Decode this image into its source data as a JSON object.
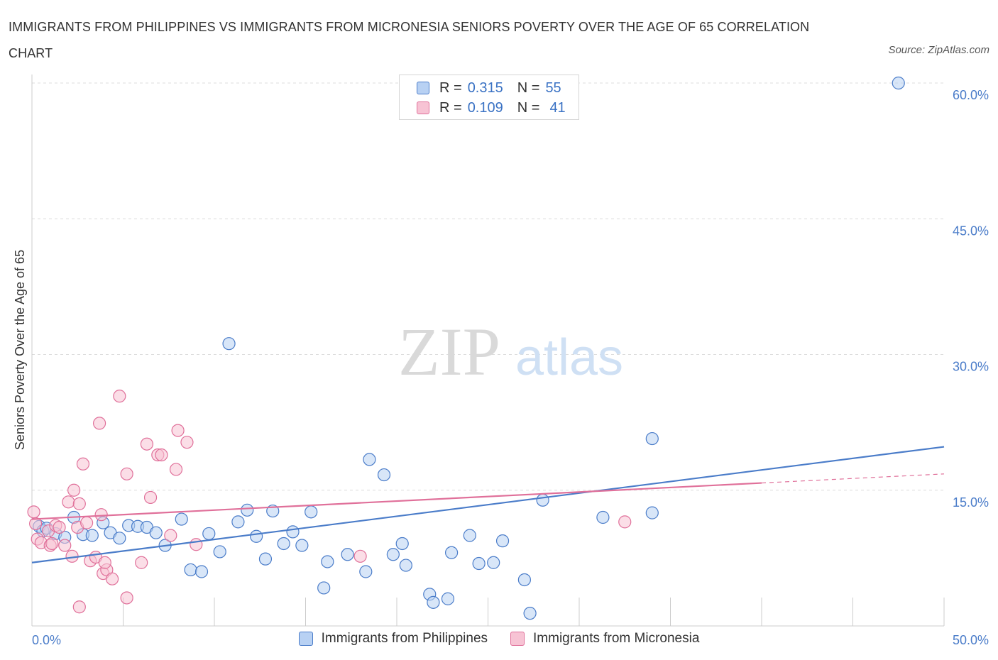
{
  "title": "IMMIGRANTS FROM PHILIPPINES VS IMMIGRANTS FROM MICRONESIA SENIORS POVERTY OVER THE AGE OF 65 CORRELATION CHART",
  "source": "Source: ZipAtlas.com",
  "watermark": {
    "zip": "ZIP",
    "atlas": "atlas"
  },
  "colors": {
    "blue": "#4a7cc9",
    "blue_fill": "#b8d1f3",
    "pink": "#e0709a",
    "pink_fill": "#f7c3d4"
  },
  "legend": {
    "rows": [
      {
        "r_label": "R = ",
        "r_value": "0.315",
        "n_label": "N = ",
        "n_value": "55"
      },
      {
        "r_label": "R = ",
        "r_value": "0.109",
        "n_label": "N = ",
        "n_value": "41"
      }
    ]
  },
  "chart_data": {
    "type": "scatter",
    "ylabel": "Seniors Poverty Over the Age of 65",
    "xlim": [
      0,
      50
    ],
    "ylim": [
      0,
      60
    ],
    "x_tick_labels": [
      "0.0%",
      "50.0%"
    ],
    "y_ticks": [
      {
        "value": 60,
        "label": "60.0%"
      },
      {
        "value": 45,
        "label": "45.0%"
      },
      {
        "value": 30,
        "label": "30.0%"
      },
      {
        "value": 15,
        "label": "15.0%"
      }
    ],
    "grid": true,
    "legend_position": "top-center",
    "series": [
      {
        "name": "Immigrants from Philippines",
        "color": "#4a7cc9",
        "fill": "#b8d1f3",
        "trend": {
          "x0": 0,
          "y0": 7.0,
          "x1": 50,
          "y1": 19.8
        },
        "points": [
          [
            0.4,
            11.0
          ],
          [
            0.6,
            10.5
          ],
          [
            0.8,
            10.8
          ],
          [
            1.3,
            10.2
          ],
          [
            1.8,
            9.8
          ],
          [
            2.3,
            12.0
          ],
          [
            2.8,
            10.1
          ],
          [
            3.3,
            10.0
          ],
          [
            3.9,
            11.4
          ],
          [
            4.3,
            10.3
          ],
          [
            4.8,
            9.7
          ],
          [
            5.3,
            11.1
          ],
          [
            5.8,
            11.0
          ],
          [
            6.3,
            10.9
          ],
          [
            6.8,
            10.3
          ],
          [
            7.3,
            8.9
          ],
          [
            8.2,
            11.8
          ],
          [
            8.7,
            6.2
          ],
          [
            9.3,
            6.0
          ],
          [
            9.7,
            10.2
          ],
          [
            10.3,
            8.2
          ],
          [
            10.8,
            31.2
          ],
          [
            11.3,
            11.5
          ],
          [
            11.8,
            12.8
          ],
          [
            12.3,
            9.9
          ],
          [
            12.8,
            7.4
          ],
          [
            13.2,
            12.7
          ],
          [
            13.8,
            9.1
          ],
          [
            14.3,
            10.4
          ],
          [
            14.8,
            8.9
          ],
          [
            15.3,
            12.6
          ],
          [
            16.0,
            4.2
          ],
          [
            16.2,
            7.1
          ],
          [
            17.3,
            7.9
          ],
          [
            18.3,
            6.0
          ],
          [
            18.5,
            18.4
          ],
          [
            19.3,
            16.7
          ],
          [
            19.8,
            7.9
          ],
          [
            20.3,
            9.1
          ],
          [
            20.5,
            6.7
          ],
          [
            21.8,
            3.5
          ],
          [
            22.0,
            2.6
          ],
          [
            22.8,
            3.0
          ],
          [
            23.0,
            8.1
          ],
          [
            24.0,
            10.0
          ],
          [
            24.5,
            6.9
          ],
          [
            25.3,
            7.0
          ],
          [
            25.8,
            9.4
          ],
          [
            27.0,
            5.1
          ],
          [
            27.3,
            1.4
          ],
          [
            28.0,
            13.9
          ],
          [
            31.3,
            12.0
          ],
          [
            34.0,
            20.7
          ],
          [
            34.0,
            12.5
          ],
          [
            47.5,
            60.0
          ]
        ]
      },
      {
        "name": "Immigrants from Micronesia",
        "color": "#e0709a",
        "fill": "#f7c3d4",
        "trend": {
          "x0": 0,
          "y0": 11.8,
          "x1": 40,
          "y1": 15.8
        },
        "trend_dashed": {
          "x0": 40,
          "y0": 15.8,
          "x1": 50,
          "y1": 16.8
        },
        "points": [
          [
            0.1,
            12.6
          ],
          [
            0.3,
            9.6
          ],
          [
            0.5,
            9.2
          ],
          [
            0.9,
            10.5
          ],
          [
            1.0,
            8.9
          ],
          [
            1.1,
            9.1
          ],
          [
            1.3,
            11.1
          ],
          [
            1.5,
            10.9
          ],
          [
            1.8,
            8.9
          ],
          [
            2.0,
            13.7
          ],
          [
            2.2,
            7.7
          ],
          [
            2.3,
            15.0
          ],
          [
            2.5,
            10.9
          ],
          [
            2.6,
            13.5
          ],
          [
            2.8,
            17.9
          ],
          [
            3.0,
            11.4
          ],
          [
            3.2,
            7.2
          ],
          [
            3.5,
            7.6
          ],
          [
            3.7,
            22.4
          ],
          [
            3.8,
            12.3
          ],
          [
            3.9,
            5.8
          ],
          [
            4.1,
            6.2
          ],
          [
            4.4,
            5.2
          ],
          [
            4.8,
            25.4
          ],
          [
            5.2,
            16.8
          ],
          [
            5.2,
            3.1
          ],
          [
            6.0,
            7.0
          ],
          [
            6.3,
            20.1
          ],
          [
            6.5,
            14.2
          ],
          [
            6.9,
            18.9
          ],
          [
            7.1,
            18.9
          ],
          [
            7.6,
            10.0
          ],
          [
            7.9,
            17.3
          ],
          [
            8.0,
            21.6
          ],
          [
            8.5,
            20.3
          ],
          [
            9.0,
            9.0
          ],
          [
            2.6,
            2.1
          ],
          [
            18.0,
            7.7
          ],
          [
            32.5,
            11.5
          ],
          [
            4.0,
            7.0
          ],
          [
            0.2,
            11.3
          ]
        ]
      }
    ]
  }
}
